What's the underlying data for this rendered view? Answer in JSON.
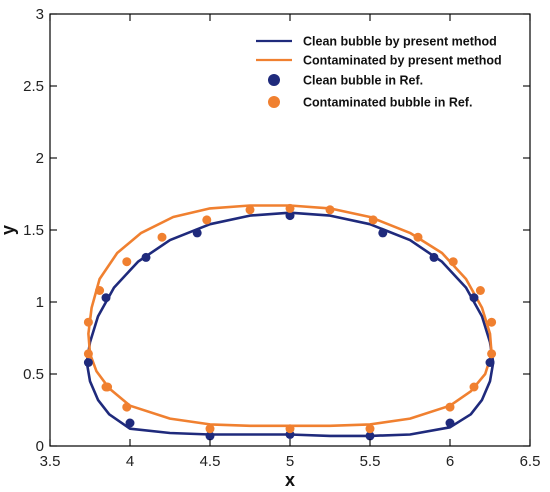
{
  "chart_data": {
    "type": "scatter",
    "xlabel": "x",
    "ylabel": "y",
    "xlim": [
      3.5,
      6.5
    ],
    "ylim": [
      0,
      3
    ],
    "xticks": [
      "3.5",
      "4",
      "4.5",
      "5",
      "5.5",
      "6",
      "6.5"
    ],
    "yticks": [
      "0",
      "0.5",
      "1",
      "1.5",
      "2",
      "2.5",
      "3"
    ],
    "grid": false,
    "legend_position": "top-right",
    "colors": {
      "clean": "#1f2a7c",
      "contaminated": "#f08030"
    },
    "series": [
      {
        "name": "Clean bubble by present method",
        "kind": "line",
        "color": "#1f2a7c",
        "x": [
          5.0,
          5.25,
          5.5,
          5.75,
          5.95,
          6.1,
          6.2,
          6.25,
          6.27,
          6.25,
          6.2,
          6.13,
          6.0,
          5.75,
          5.5,
          5.25,
          5.0,
          4.75,
          4.5,
          4.25,
          4.0,
          3.87,
          3.8,
          3.75,
          3.73,
          3.75,
          3.8,
          3.9,
          4.05,
          4.25,
          4.5,
          4.75,
          5.0
        ],
        "y": [
          1.62,
          1.6,
          1.54,
          1.43,
          1.28,
          1.1,
          0.9,
          0.72,
          0.58,
          0.45,
          0.32,
          0.22,
          0.13,
          0.08,
          0.07,
          0.07,
          0.08,
          0.08,
          0.08,
          0.09,
          0.12,
          0.22,
          0.32,
          0.45,
          0.58,
          0.72,
          0.9,
          1.1,
          1.28,
          1.43,
          1.54,
          1.6,
          1.62
        ]
      },
      {
        "name": "Contaminated by present method",
        "kind": "line",
        "color": "#f08030",
        "x": [
          5.0,
          5.25,
          5.5,
          5.75,
          5.95,
          6.1,
          6.2,
          6.25,
          6.26,
          6.22,
          6.13,
          6.0,
          5.75,
          5.5,
          5.25,
          5.0,
          4.75,
          4.5,
          4.25,
          4.0,
          3.87,
          3.79,
          3.75,
          3.74,
          3.76,
          3.81,
          3.92,
          4.07,
          4.27,
          4.5,
          4.75,
          5.0
        ],
        "y": [
          1.67,
          1.65,
          1.59,
          1.48,
          1.34,
          1.16,
          0.96,
          0.78,
          0.64,
          0.5,
          0.38,
          0.28,
          0.19,
          0.15,
          0.14,
          0.14,
          0.14,
          0.15,
          0.19,
          0.28,
          0.4,
          0.52,
          0.64,
          0.78,
          0.96,
          1.16,
          1.34,
          1.48,
          1.59,
          1.65,
          1.67,
          1.67
        ]
      },
      {
        "name": "Clean bubble in Ref.",
        "kind": "points",
        "color": "#1f2a7c",
        "x": [
          3.74,
          3.85,
          4.0,
          4.1,
          4.42,
          5.0,
          5.58,
          5.9,
          6.15,
          6.25,
          6.0,
          5.5,
          5.0,
          4.5
        ],
        "y": [
          0.58,
          1.03,
          0.16,
          1.31,
          1.48,
          1.6,
          1.48,
          1.31,
          1.03,
          0.58,
          0.16,
          0.07,
          0.08,
          0.07
        ]
      },
      {
        "name": "Contaminated bubble in Ref.",
        "kind": "points",
        "color": "#f08030",
        "x": [
          3.74,
          3.74,
          3.81,
          3.85,
          3.98,
          4.2,
          4.48,
          4.75,
          5.0,
          5.25,
          5.52,
          5.8,
          6.02,
          6.15,
          6.19,
          6.26,
          6.26,
          6.0,
          5.5,
          5.0,
          4.5,
          3.98,
          3.86
        ],
        "y": [
          0.64,
          0.86,
          1.08,
          0.41,
          1.28,
          1.45,
          1.57,
          1.64,
          1.65,
          1.64,
          1.57,
          1.45,
          1.28,
          0.41,
          1.08,
          0.86,
          0.64,
          0.27,
          0.12,
          0.12,
          0.12,
          0.27,
          0.41
        ]
      }
    ]
  }
}
